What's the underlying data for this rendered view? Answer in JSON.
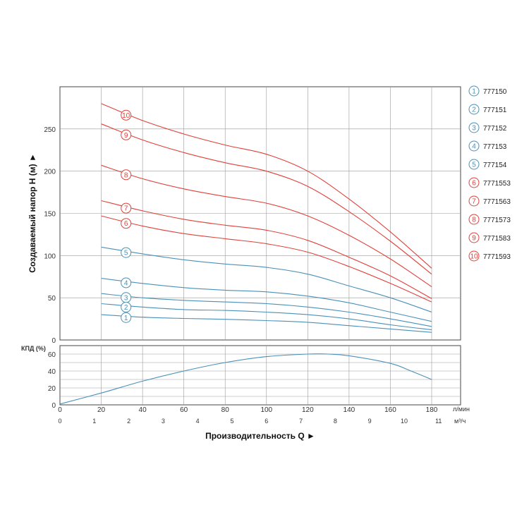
{
  "colors": {
    "blue": "#4a90b8",
    "red": "#e0413a",
    "grid": "#9a9a9a",
    "frame": "#444444"
  },
  "chart_data": [
    {
      "type": "line",
      "title": "",
      "xlabel": "Производительность Q ►",
      "ylabel": "Создаваемый напор H (м) ►",
      "x_unit_primary": "л/мин",
      "x_unit_secondary": "м³/ч",
      "xlim": [
        0,
        194
      ],
      "ylim": [
        0,
        300
      ],
      "x_ticks": [
        "0",
        "20",
        "40",
        "60",
        "80",
        "100",
        "120",
        "140",
        "160",
        "180"
      ],
      "x_tick_values": [
        0,
        20,
        40,
        60,
        80,
        100,
        120,
        140,
        160,
        180
      ],
      "x2_ticks": [
        "0",
        "1",
        "2",
        "3",
        "4",
        "5",
        "6",
        "7",
        "8",
        "9",
        "10",
        "11"
      ],
      "y_ticks": [
        "0",
        "50",
        "100",
        "150",
        "200",
        "250"
      ],
      "y_tick_values": [
        0,
        50,
        100,
        150,
        200,
        250
      ],
      "grid": true,
      "legend_position": "right",
      "series": [
        {
          "marker": "1",
          "name": "777150",
          "color": "blue",
          "x": [
            20,
            40,
            60,
            80,
            100,
            120,
            140,
            160,
            180
          ],
          "y": [
            30,
            27,
            25.5,
            24.5,
            23,
            21,
            17,
            13,
            9
          ]
        },
        {
          "marker": "2",
          "name": "777151",
          "color": "blue",
          "x": [
            20,
            40,
            60,
            80,
            100,
            120,
            140,
            160,
            180
          ],
          "y": [
            43,
            39,
            36,
            35,
            33,
            30,
            25,
            18,
            12
          ]
        },
        {
          "marker": "3",
          "name": "777152",
          "color": "blue",
          "x": [
            20,
            40,
            60,
            80,
            100,
            120,
            140,
            160,
            180
          ],
          "y": [
            55,
            50,
            47,
            45,
            43,
            39,
            33,
            25,
            16
          ]
        },
        {
          "marker": "4",
          "name": "777153",
          "color": "blue",
          "x": [
            20,
            40,
            60,
            80,
            100,
            120,
            140,
            160,
            180
          ],
          "y": [
            73,
            67,
            62,
            59,
            57,
            52,
            44,
            33,
            22
          ]
        },
        {
          "marker": "5",
          "name": "777154",
          "color": "blue",
          "x": [
            20,
            40,
            60,
            80,
            100,
            120,
            140,
            160,
            180
          ],
          "y": [
            110,
            102,
            95,
            90,
            86,
            78,
            64,
            50,
            33
          ]
        },
        {
          "marker": "6",
          "name": "7771553",
          "color": "red",
          "x": [
            20,
            40,
            60,
            80,
            100,
            120,
            140,
            160,
            180
          ],
          "y": [
            147,
            135,
            126,
            120,
            114,
            104,
            87,
            67,
            45
          ]
        },
        {
          "marker": "7",
          "name": "7771563",
          "color": "red",
          "x": [
            20,
            40,
            60,
            80,
            100,
            120,
            140,
            160,
            180
          ],
          "y": [
            165,
            153,
            143,
            136,
            130,
            118,
            98,
            76,
            49
          ]
        },
        {
          "marker": "8",
          "name": "7771573",
          "color": "red",
          "x": [
            20,
            40,
            60,
            80,
            100,
            120,
            140,
            160,
            180
          ],
          "y": [
            207,
            191,
            179,
            170,
            162,
            147,
            124,
            96,
            63
          ]
        },
        {
          "marker": "9",
          "name": "7771583",
          "color": "red",
          "x": [
            20,
            40,
            60,
            80,
            100,
            120,
            140,
            160,
            180
          ],
          "y": [
            256,
            237,
            222,
            210,
            200,
            182,
            152,
            117,
            78
          ]
        },
        {
          "marker": "10",
          "name": "7771593",
          "color": "red",
          "x": [
            20,
            40,
            60,
            80,
            100,
            120,
            140,
            160,
            180
          ],
          "y": [
            280,
            260,
            244,
            231,
            220,
            200,
            167,
            128,
            85
          ]
        }
      ],
      "marker_x": 32
    },
    {
      "type": "line",
      "ylabel": "КПД (%)",
      "xlim": [
        0,
        194
      ],
      "ylim": [
        0,
        70
      ],
      "y_ticks": [
        "0",
        "20",
        "40",
        "60"
      ],
      "y_tick_values": [
        0,
        20,
        40,
        60
      ],
      "grid": true,
      "series": [
        {
          "name": "",
          "color": "blue",
          "x": [
            0,
            20,
            40,
            60,
            80,
            100,
            120,
            130,
            140,
            160,
            170,
            180
          ],
          "y": [
            1,
            14,
            28,
            40,
            50,
            57,
            60,
            60,
            58,
            49,
            40,
            30
          ]
        }
      ]
    }
  ]
}
